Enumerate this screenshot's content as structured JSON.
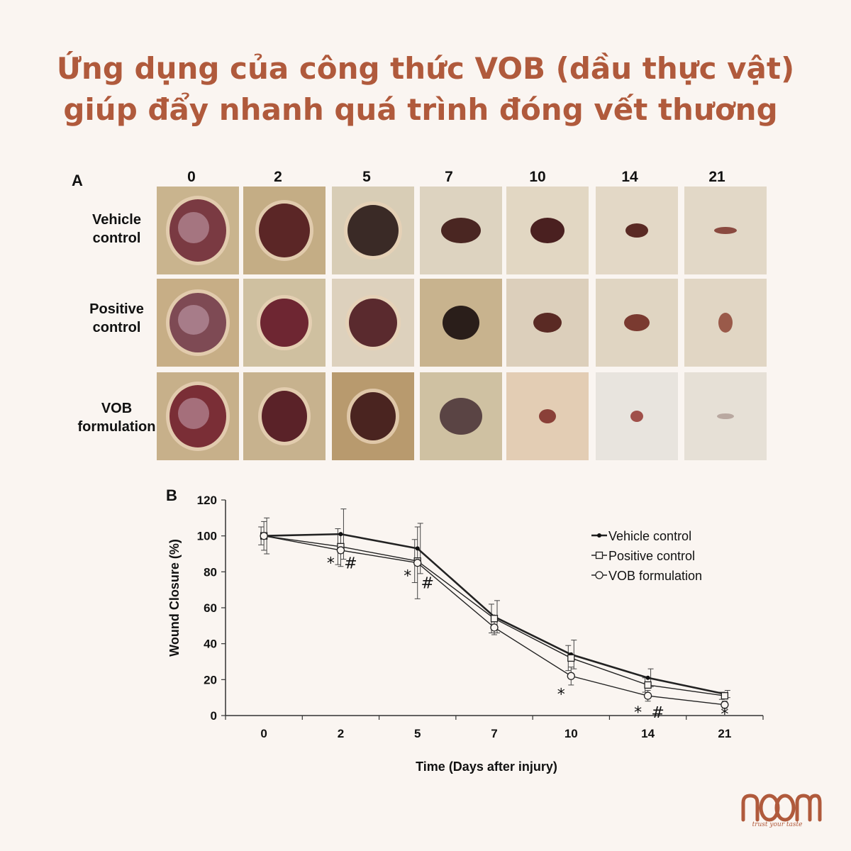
{
  "title": {
    "line1": "Ứng dụng của công thức VOB (dầu thực vật)",
    "line2": "giúp đẩy nhanh quá trình đóng vết thương"
  },
  "panel_a": {
    "label": "A",
    "days": [
      "0",
      "2",
      "5",
      "7",
      "10",
      "14",
      "21"
    ],
    "rows": [
      {
        "line1": "Vehicle",
        "line2": "control"
      },
      {
        "line1": "Positive",
        "line2": "control"
      },
      {
        "line1": "VOB",
        "line2": "formulation"
      }
    ]
  },
  "panel_b": {
    "label": "B"
  },
  "chart_data": {
    "type": "line",
    "categories": [
      "0",
      "2",
      "5",
      "7",
      "10",
      "14",
      "21"
    ],
    "xlabel": "Time (Days after injury)",
    "ylabel": "Wound Closure (%)",
    "ylim": [
      0,
      120
    ],
    "yticks": [
      "0",
      "20",
      "40",
      "60",
      "80",
      "100",
      "120"
    ],
    "legend_position": "top-right",
    "series": [
      {
        "name": "Vehicle control",
        "marker": "filled-dot",
        "values": [
          100,
          101,
          93,
          55,
          34,
          21,
          12
        ],
        "err": [
          10,
          14,
          14,
          9,
          8,
          5,
          2
        ]
      },
      {
        "name": "Positive control",
        "marker": "square",
        "values": [
          100,
          94,
          86,
          54,
          32,
          17,
          11
        ],
        "err": [
          5,
          10,
          12,
          8,
          7,
          4,
          2
        ]
      },
      {
        "name": "VOB formulation",
        "marker": "circle",
        "values": [
          100,
          92,
          85,
          49,
          22,
          11,
          6
        ],
        "err": [
          8,
          9,
          20,
          4,
          5,
          3,
          2
        ]
      }
    ],
    "annotations": [
      {
        "category": "2",
        "y": 85,
        "text": "*",
        "side": "left"
      },
      {
        "category": "2",
        "y": 85,
        "text": "#",
        "side": "right"
      },
      {
        "category": "5",
        "y": 78,
        "text": "*",
        "side": "left"
      },
      {
        "category": "5",
        "y": 74,
        "text": "#",
        "side": "right"
      },
      {
        "category": "10",
        "y": 12,
        "text": "*",
        "side": "left"
      },
      {
        "category": "14",
        "y": 2,
        "text": "*",
        "side": "left"
      },
      {
        "category": "14",
        "y": 2,
        "text": "#",
        "side": "right"
      },
      {
        "category": "21",
        "y": 1,
        "text": "*",
        "side": "center"
      }
    ]
  },
  "brand": {
    "logo_name": "noom-logo",
    "tagline": "trust your taste",
    "color": "#b05a3c"
  }
}
